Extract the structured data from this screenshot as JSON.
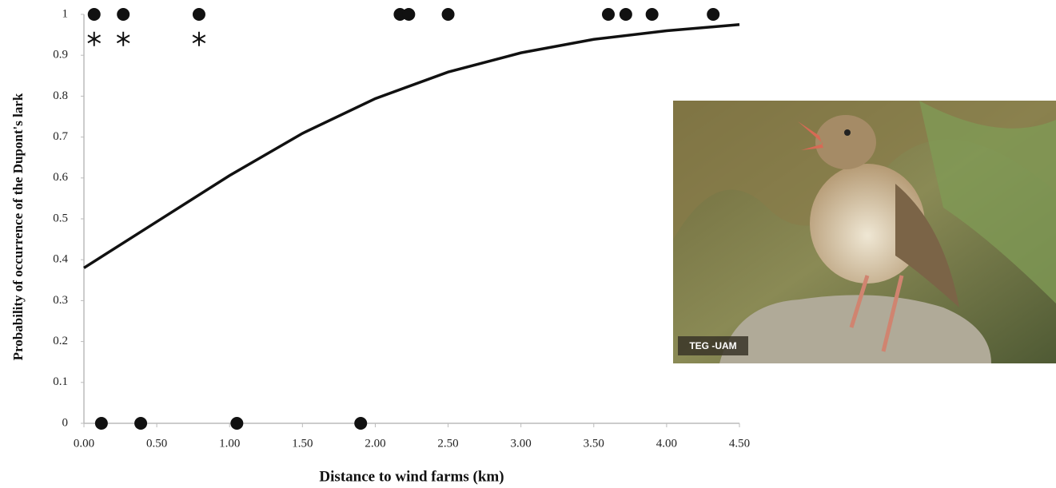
{
  "chart_data": {
    "type": "scatter",
    "xlabel": "Distance to wind farms (km)",
    "ylabel": "Probability of occurrence of the Dupont's lark",
    "xlim": [
      0,
      4.5
    ],
    "ylim": [
      0,
      1
    ],
    "xticks": [
      {
        "value": 0,
        "label": "0.00"
      },
      {
        "value": 0.5,
        "label": "0.50"
      },
      {
        "value": 1,
        "label": "1.00"
      },
      {
        "value": 1.5,
        "label": "1.50"
      },
      {
        "value": 2,
        "label": "2.00"
      },
      {
        "value": 2.5,
        "label": "2.50"
      },
      {
        "value": 3,
        "label": "3.00"
      },
      {
        "value": 3.5,
        "label": "3.50"
      },
      {
        "value": 4,
        "label": "4.00"
      },
      {
        "value": 4.5,
        "label": "4.50"
      }
    ],
    "yticks": [
      0,
      0.1,
      0.2,
      0.3,
      0.4,
      0.5,
      0.6,
      0.7,
      0.8,
      0.9,
      1
    ],
    "grid": false,
    "series": [
      {
        "marker": "circle",
        "color": "#111111",
        "x": [
          0.07,
          0.27,
          0.79,
          2.17,
          2.23,
          2.5,
          3.6,
          3.72,
          3.9,
          4.32,
          0.12,
          0.39,
          1.05,
          1.9
        ],
        "values": [
          1,
          1,
          1,
          1,
          1,
          1,
          1,
          1,
          1,
          1,
          0,
          0,
          0,
          0
        ]
      },
      {
        "marker": "asterisk",
        "color": "#111111",
        "x": [
          0.07,
          0.27,
          0.79
        ],
        "values": [
          0.94,
          0.94,
          0.94
        ]
      },
      {
        "marker": "line",
        "color": "#111111",
        "x": [
          0,
          0.5,
          1,
          1.5,
          2,
          2.5,
          3,
          3.5,
          4,
          4.5
        ],
        "values": [
          0.38,
          0.493,
          0.606,
          0.709,
          0.794,
          0.859,
          0.906,
          0.939,
          0.96,
          0.975
        ]
      }
    ]
  },
  "photo": {
    "credit": "TEG -UAM"
  }
}
